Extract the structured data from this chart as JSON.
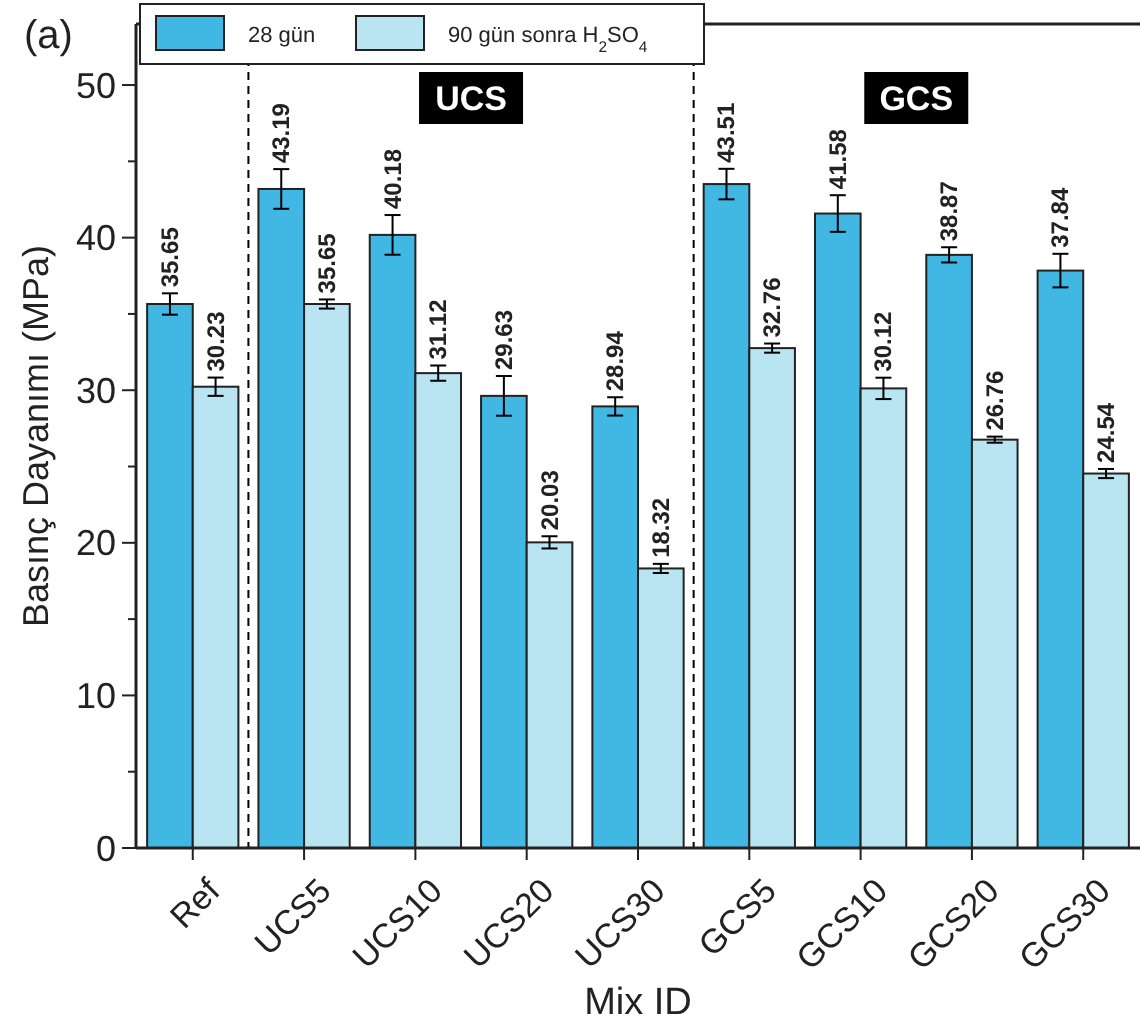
{
  "chart_data": {
    "type": "bar",
    "title": "(a)",
    "xlabel": "Mix ID",
    "ylabel": "Basınç Dayanımı (MPa)",
    "categories": [
      "Ref",
      "UCS5",
      "UCS10",
      "UCS20",
      "UCS30",
      "GCS5",
      "GCS10",
      "GCS20",
      "GCS30"
    ],
    "series": [
      {
        "name": "28 gün",
        "color": "#41b8e4",
        "values": [
          35.65,
          43.19,
          40.18,
          29.63,
          28.94,
          43.51,
          41.58,
          38.87,
          37.84
        ],
        "errors": [
          0.7,
          1.3,
          1.3,
          1.3,
          0.6,
          1.0,
          1.2,
          0.5,
          1.1
        ]
      },
      {
        "name": "90 gün sonra H$_{2}$SO$_{4}$",
        "color": "#b9e4f1",
        "values": [
          30.23,
          35.65,
          31.12,
          20.03,
          18.32,
          32.76,
          30.12,
          26.76,
          24.54
        ],
        "errors": [
          0.6,
          0.3,
          0.5,
          0.4,
          0.3,
          0.3,
          0.7,
          0.2,
          0.3
        ]
      }
    ],
    "ylim": [
      0,
      54
    ],
    "yticks": [
      0,
      {
        "value": 5,
        "label": null
      },
      10,
      {
        "value": 15,
        "label": null
      },
      20,
      {
        "value": 25,
        "label": null
      },
      30,
      {
        "value": 35,
        "label": null
      },
      40,
      {
        "value": 45,
        "label": null
      },
      50
    ],
    "annotations": [
      "UCS",
      "GCS"
    ],
    "data_labels": true,
    "legend": "top left",
    "grid": false
  }
}
